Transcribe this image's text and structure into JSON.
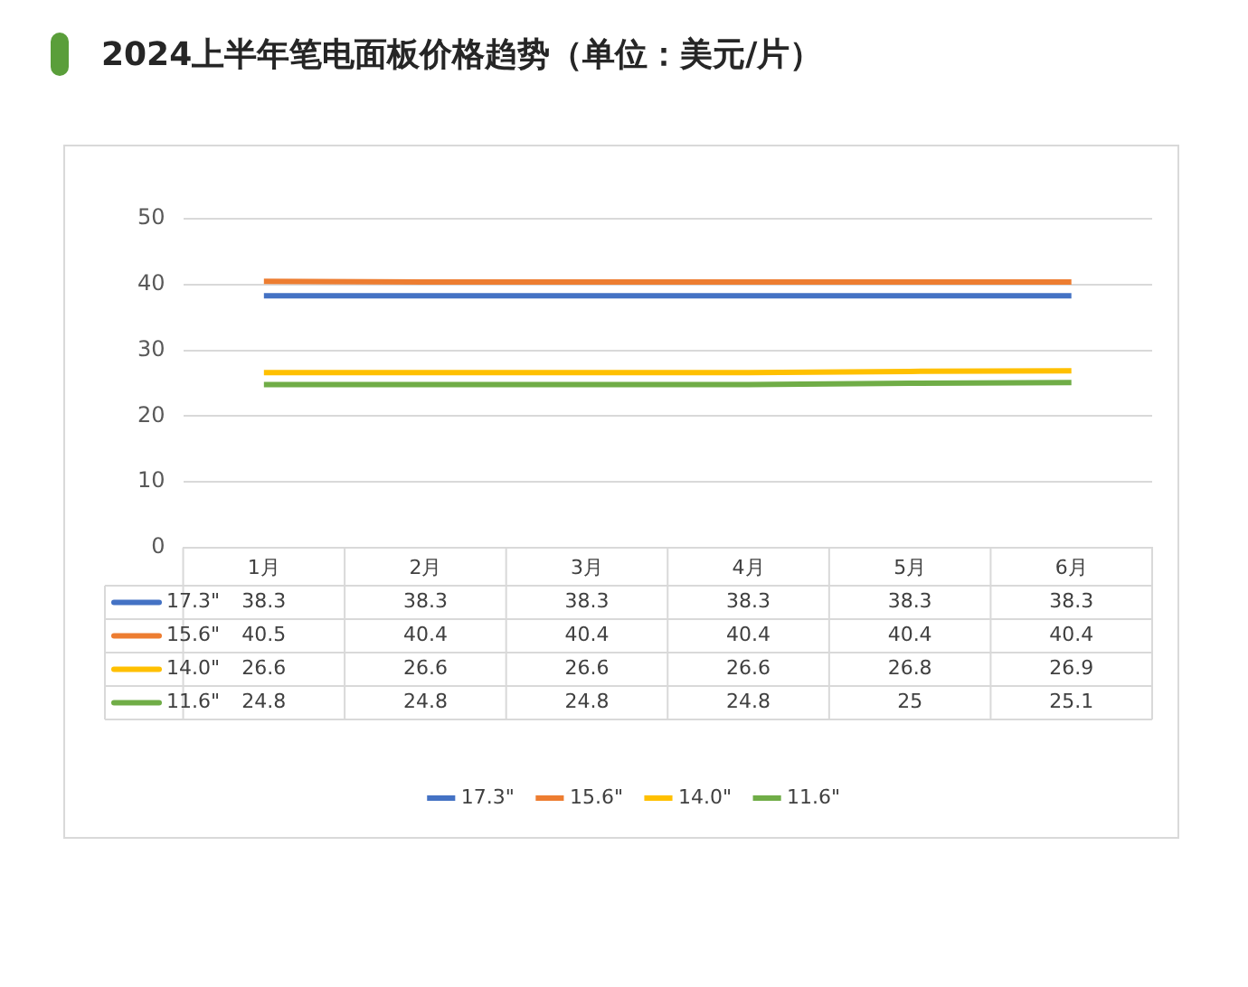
{
  "chart_data": {
    "type": "line",
    "title": "2024上半年笔电面板价格趋势（单位：美元/片）",
    "categories": [
      "1月",
      "2月",
      "3月",
      "4月",
      "5月",
      "6月"
    ],
    "series": [
      {
        "name": "17.3\"",
        "color": "#4472c4",
        "values": [
          38.3,
          38.3,
          38.3,
          38.3,
          38.3,
          38.3
        ]
      },
      {
        "name": "15.6\"",
        "color": "#ed7d31",
        "values": [
          40.5,
          40.4,
          40.4,
          40.4,
          40.4,
          40.4
        ]
      },
      {
        "name": "14.0\"",
        "color": "#ffc000",
        "values": [
          26.6,
          26.6,
          26.6,
          26.6,
          26.8,
          26.9
        ]
      },
      {
        "name": "11.6\"",
        "color": "#70ad47",
        "values": [
          24.8,
          24.8,
          24.8,
          24.8,
          25,
          25.1
        ]
      }
    ],
    "ylim": [
      0,
      50
    ],
    "yticks": [
      0,
      10,
      20,
      30,
      40,
      50
    ],
    "grid": "y",
    "legend": "bottom",
    "marker": "none",
    "line_style": "solid",
    "data_labels": true
  }
}
